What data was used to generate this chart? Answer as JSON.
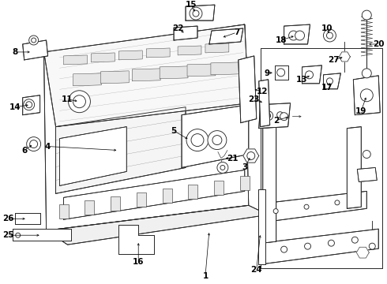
{
  "bg_color": "#ffffff",
  "lc": "#2a2a2a",
  "lw": 0.65,
  "fig_w": 4.9,
  "fig_h": 3.6,
  "dpi": 100
}
